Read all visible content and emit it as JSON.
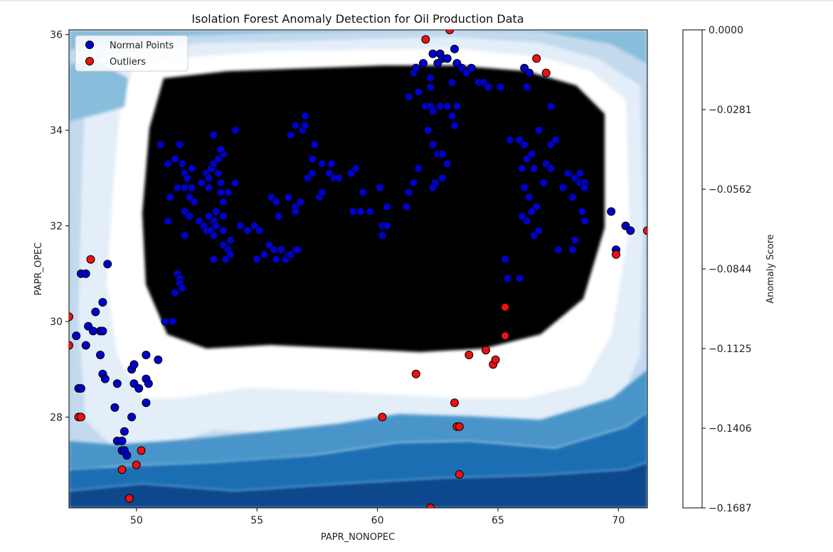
{
  "chart_data": {
    "type": "scatter",
    "title": "Isolation Forest Anomaly Detection for Oil Production Data",
    "xlabel": "PAPR_NONOPEC",
    "ylabel": "PAPR_OPEC",
    "xlim": [
      47.2,
      71.2
    ],
    "ylim": [
      26.1,
      36.1
    ],
    "x_ticks": [
      "50",
      "55",
      "60",
      "65",
      "70"
    ],
    "y_ticks": [
      "28",
      "30",
      "32",
      "34",
      "36"
    ],
    "legend": {
      "placement": "top-left",
      "entries": [
        "Normal Points",
        "Outliers"
      ]
    },
    "colorbar": {
      "label": "Anomaly Score",
      "ticks": [
        "0.0000",
        "−0.0281",
        "−0.0562",
        "−0.0844",
        "−0.1125",
        "−0.1406",
        "−0.1687"
      ],
      "range": [
        -0.1687,
        0.0
      ]
    },
    "colors": {
      "normal_fill": "#0000cc",
      "outlier_fill": "#ee1111",
      "marker_edge": "#000000",
      "levels": [
        "#08468c",
        "#1f6eb3",
        "#4a95c9",
        "#88bddc",
        "#c3d9ed",
        "#e3eef9",
        "#ffffff"
      ]
    },
    "series": [
      {
        "name": "Normal Points",
        "points": [
          [
            47.5,
            29.7
          ],
          [
            47.7,
            31.0
          ],
          [
            47.9,
            31.0
          ],
          [
            47.6,
            28.6
          ],
          [
            47.7,
            28.6
          ],
          [
            47.9,
            29.5
          ],
          [
            48.0,
            29.9
          ],
          [
            48.2,
            29.8
          ],
          [
            48.3,
            30.2
          ],
          [
            48.5,
            29.8
          ],
          [
            48.6,
            29.8
          ],
          [
            48.5,
            29.3
          ],
          [
            48.6,
            30.4
          ],
          [
            48.8,
            31.2
          ],
          [
            48.6,
            28.9
          ],
          [
            48.7,
            28.8
          ],
          [
            49.1,
            28.2
          ],
          [
            49.2,
            28.7
          ],
          [
            49.2,
            27.5
          ],
          [
            49.4,
            27.5
          ],
          [
            49.4,
            27.3
          ],
          [
            49.5,
            27.3
          ],
          [
            49.5,
            27.7
          ],
          [
            49.6,
            27.2
          ],
          [
            49.8,
            29.0
          ],
          [
            49.8,
            28.0
          ],
          [
            49.9,
            29.1
          ],
          [
            49.9,
            28.7
          ],
          [
            50.1,
            28.6
          ],
          [
            50.4,
            29.3
          ],
          [
            50.4,
            28.8
          ],
          [
            50.5,
            28.7
          ],
          [
            50.4,
            28.3
          ],
          [
            50.9,
            29.2
          ],
          [
            51.0,
            33.7
          ],
          [
            51.2,
            30.0
          ],
          [
            51.3,
            33.3
          ],
          [
            51.3,
            32.1
          ],
          [
            51.4,
            32.6
          ],
          [
            51.6,
            33.4
          ],
          [
            51.7,
            32.8
          ],
          [
            51.8,
            33.7
          ],
          [
            51.6,
            30.6
          ],
          [
            51.7,
            31.0
          ],
          [
            51.8,
            30.9
          ],
          [
            51.8,
            30.8
          ],
          [
            51.9,
            30.7
          ],
          [
            51.5,
            30.0
          ],
          [
            51.9,
            33.3
          ],
          [
            52.0,
            33.1
          ],
          [
            52.1,
            33.0
          ],
          [
            52.0,
            32.8
          ],
          [
            52.2,
            32.6
          ],
          [
            52.3,
            32.8
          ],
          [
            52.4,
            32.5
          ],
          [
            52.0,
            32.3
          ],
          [
            52.2,
            32.2
          ],
          [
            52.0,
            31.8
          ],
          [
            52.3,
            33.2
          ],
          [
            52.7,
            32.9
          ],
          [
            52.9,
            33.1
          ],
          [
            53.0,
            33.0
          ],
          [
            53.1,
            33.2
          ],
          [
            53.2,
            33.3
          ],
          [
            53.4,
            33.1
          ],
          [
            53.4,
            33.4
          ],
          [
            53.6,
            33.5
          ],
          [
            53.5,
            33.6
          ],
          [
            53.5,
            32.9
          ],
          [
            53.8,
            32.7
          ],
          [
            53.6,
            32.5
          ],
          [
            53.3,
            32.3
          ],
          [
            53.2,
            32.1
          ],
          [
            53.0,
            32.2
          ],
          [
            52.8,
            32.0
          ],
          [
            52.9,
            31.9
          ],
          [
            53.1,
            31.9
          ],
          [
            53.2,
            31.8
          ],
          [
            52.6,
            32.1
          ],
          [
            53.6,
            32.2
          ],
          [
            53.6,
            31.9
          ],
          [
            53.6,
            31.6
          ],
          [
            53.9,
            31.7
          ],
          [
            53.8,
            31.5
          ],
          [
            53.9,
            31.4
          ],
          [
            53.7,
            31.3
          ],
          [
            53.2,
            31.3
          ],
          [
            53.3,
            32.0
          ],
          [
            53.5,
            32.7
          ],
          [
            53.0,
            32.8
          ],
          [
            53.2,
            33.9
          ],
          [
            54.1,
            34.0
          ],
          [
            54.1,
            32.9
          ],
          [
            54.3,
            32.0
          ],
          [
            54.6,
            31.9
          ],
          [
            54.9,
            32.0
          ],
          [
            55.1,
            31.9
          ],
          [
            55.0,
            31.3
          ],
          [
            55.3,
            31.4
          ],
          [
            55.5,
            31.6
          ],
          [
            55.6,
            32.6
          ],
          [
            55.8,
            32.5
          ],
          [
            55.9,
            32.2
          ],
          [
            55.7,
            31.5
          ],
          [
            55.8,
            31.3
          ],
          [
            56.0,
            31.5
          ],
          [
            56.2,
            31.3
          ],
          [
            56.3,
            31.4
          ],
          [
            56.4,
            31.4
          ],
          [
            56.6,
            31.5
          ],
          [
            56.7,
            31.5
          ],
          [
            56.3,
            32.6
          ],
          [
            56.6,
            32.4
          ],
          [
            56.6,
            32.3
          ],
          [
            56.8,
            32.5
          ],
          [
            56.4,
            33.9
          ],
          [
            56.6,
            34.1
          ],
          [
            56.9,
            34.0
          ],
          [
            57.0,
            34.1
          ],
          [
            57.0,
            34.3
          ],
          [
            57.3,
            33.4
          ],
          [
            57.3,
            33.1
          ],
          [
            57.4,
            33.7
          ],
          [
            57.1,
            33.0
          ],
          [
            57.6,
            32.6
          ],
          [
            57.7,
            32.7
          ],
          [
            57.7,
            33.3
          ],
          [
            58.0,
            33.1
          ],
          [
            58.1,
            33.3
          ],
          [
            58.2,
            33.0
          ],
          [
            58.4,
            33.0
          ],
          [
            58.9,
            33.1
          ],
          [
            59.1,
            33.2
          ],
          [
            59.4,
            32.7
          ],
          [
            59.3,
            32.3
          ],
          [
            59.0,
            32.3
          ],
          [
            59.7,
            32.3
          ],
          [
            60.1,
            32.8
          ],
          [
            60.2,
            32.0
          ],
          [
            60.2,
            31.8
          ],
          [
            60.4,
            32.4
          ],
          [
            60.4,
            32.0
          ],
          [
            61.2,
            32.4
          ],
          [
            61.3,
            32.7
          ],
          [
            61.5,
            32.9
          ],
          [
            61.7,
            33.2
          ],
          [
            61.3,
            34.7
          ],
          [
            61.5,
            35.2
          ],
          [
            61.6,
            35.3
          ],
          [
            61.7,
            34.8
          ],
          [
            61.9,
            35.4
          ],
          [
            62.2,
            35.1
          ],
          [
            62.2,
            34.9
          ],
          [
            62.3,
            35.6
          ],
          [
            62.5,
            35.4
          ],
          [
            62.6,
            35.6
          ],
          [
            62.7,
            35.5
          ],
          [
            62.9,
            35.5
          ],
          [
            62.0,
            34.5
          ],
          [
            62.2,
            34.5
          ],
          [
            62.3,
            34.4
          ],
          [
            62.6,
            34.5
          ],
          [
            62.9,
            34.5
          ],
          [
            63.1,
            34.3
          ],
          [
            63.3,
            34.5
          ],
          [
            63.2,
            34.1
          ],
          [
            63.1,
            35.0
          ],
          [
            63.2,
            35.7
          ],
          [
            63.3,
            35.4
          ],
          [
            63.5,
            35.3
          ],
          [
            63.7,
            35.2
          ],
          [
            63.9,
            35.3
          ],
          [
            64.2,
            35.0
          ],
          [
            64.4,
            35.0
          ],
          [
            64.6,
            34.9
          ],
          [
            65.1,
            34.9
          ],
          [
            62.1,
            34.0
          ],
          [
            62.3,
            33.7
          ],
          [
            62.5,
            33.5
          ],
          [
            62.7,
            33.5
          ],
          [
            62.9,
            33.3
          ],
          [
            62.4,
            32.9
          ],
          [
            62.3,
            32.8
          ],
          [
            62.7,
            33.0
          ],
          [
            65.3,
            31.3
          ],
          [
            65.4,
            30.9
          ],
          [
            65.9,
            30.9
          ],
          [
            65.5,
            33.8
          ],
          [
            65.9,
            33.8
          ],
          [
            66.1,
            33.7
          ],
          [
            66.0,
            33.2
          ],
          [
            66.2,
            33.4
          ],
          [
            66.4,
            33.5
          ],
          [
            66.5,
            33.2
          ],
          [
            66.6,
            32.4
          ],
          [
            66.4,
            32.3
          ],
          [
            66.2,
            32.1
          ],
          [
            66.0,
            32.2
          ],
          [
            66.1,
            32.8
          ],
          [
            66.3,
            32.6
          ],
          [
            66.5,
            31.8
          ],
          [
            66.7,
            31.9
          ],
          [
            66.9,
            32.9
          ],
          [
            67.0,
            33.3
          ],
          [
            67.2,
            33.2
          ],
          [
            67.2,
            33.7
          ],
          [
            67.4,
            33.8
          ],
          [
            67.7,
            32.8
          ],
          [
            67.9,
            33.1
          ],
          [
            68.2,
            33.0
          ],
          [
            68.4,
            33.1
          ],
          [
            68.4,
            32.9
          ],
          [
            68.6,
            32.9
          ],
          [
            68.5,
            32.3
          ],
          [
            68.6,
            32.1
          ],
          [
            68.2,
            31.7
          ],
          [
            68.1,
            31.5
          ],
          [
            67.5,
            31.5
          ],
          [
            68.1,
            32.6
          ],
          [
            68.6,
            32.8
          ],
          [
            69.7,
            32.3
          ],
          [
            69.9,
            31.5
          ],
          [
            70.3,
            32.0
          ],
          [
            70.5,
            31.9
          ],
          [
            67.2,
            34.5
          ],
          [
            66.7,
            34.0
          ],
          [
            66.1,
            35.3
          ],
          [
            66.3,
            35.2
          ],
          [
            66.2,
            34.9
          ]
        ]
      },
      {
        "name": "Outliers",
        "points": [
          [
            47.2,
            30.1
          ],
          [
            47.2,
            29.5
          ],
          [
            47.6,
            28.0
          ],
          [
            47.7,
            28.0
          ],
          [
            48.1,
            31.3
          ],
          [
            49.4,
            26.9
          ],
          [
            49.7,
            26.3
          ],
          [
            50.0,
            27.0
          ],
          [
            50.2,
            27.3
          ],
          [
            62.0,
            35.9
          ],
          [
            63.0,
            36.1
          ],
          [
            66.6,
            35.5
          ],
          [
            67.0,
            35.2
          ],
          [
            61.6,
            28.9
          ],
          [
            60.2,
            28.0
          ],
          [
            63.2,
            28.3
          ],
          [
            63.3,
            27.8
          ],
          [
            63.4,
            27.8
          ],
          [
            63.4,
            26.8
          ],
          [
            62.2,
            26.1
          ],
          [
            63.8,
            29.3
          ],
          [
            64.5,
            29.4
          ],
          [
            64.8,
            29.1
          ],
          [
            64.9,
            29.2
          ],
          [
            65.3,
            29.7
          ],
          [
            65.3,
            30.3
          ],
          [
            69.9,
            31.4
          ],
          [
            71.2,
            31.9
          ]
        ]
      }
    ]
  }
}
